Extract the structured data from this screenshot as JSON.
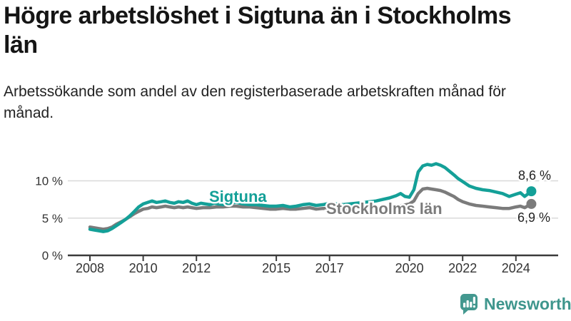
{
  "header": {
    "title": "Högre arbetslöshet i Sigtuna än i Stockholms län",
    "subtitle": "Arbetssökande som andel av den registerbaserade arbetskraften månad för månad."
  },
  "chart_data": {
    "type": "line",
    "title": "Högre arbetslöshet i Sigtuna än i Stockholms län",
    "subtitle": "Arbetssökande som andel av den registerbaserade arbetskraften månad för månad.",
    "unit": "%",
    "x_axis": {
      "ticks": [
        2008,
        2010,
        2012,
        2015,
        2017,
        2020,
        2022,
        2024
      ],
      "range": [
        2008,
        2024.6
      ],
      "grid": false
    },
    "y_axis": {
      "tick_values": [
        0,
        5,
        10
      ],
      "tick_labels": [
        "0 %",
        "5 %",
        "10 %"
      ],
      "range": [
        0,
        13
      ],
      "grid": true
    },
    "grid_color": "#d9d9d9",
    "legend_position": "inline-labels",
    "series": [
      {
        "name": "Sigtuna",
        "color": "#14a098",
        "end_label": "8,6 %",
        "end_value": 8.6,
        "points": [
          [
            2008.0,
            3.5
          ],
          [
            2008.17,
            3.4
          ],
          [
            2008.33,
            3.3
          ],
          [
            2008.5,
            3.2
          ],
          [
            2008.67,
            3.3
          ],
          [
            2008.83,
            3.6
          ],
          [
            2009.0,
            4.0
          ],
          [
            2009.17,
            4.4
          ],
          [
            2009.33,
            4.8
          ],
          [
            2009.5,
            5.3
          ],
          [
            2009.67,
            5.9
          ],
          [
            2009.83,
            6.5
          ],
          [
            2010.0,
            6.9
          ],
          [
            2010.17,
            7.1
          ],
          [
            2010.33,
            7.3
          ],
          [
            2010.5,
            7.1
          ],
          [
            2010.67,
            7.2
          ],
          [
            2010.83,
            7.3
          ],
          [
            2011.0,
            7.1
          ],
          [
            2011.17,
            7.0
          ],
          [
            2011.33,
            7.2
          ],
          [
            2011.5,
            7.1
          ],
          [
            2011.67,
            7.3
          ],
          [
            2011.83,
            7.0
          ],
          [
            2012.0,
            6.8
          ],
          [
            2012.17,
            7.0
          ],
          [
            2012.33,
            6.9
          ],
          [
            2012.5,
            6.8
          ],
          [
            2012.67,
            7.0
          ],
          [
            2012.83,
            6.9
          ],
          [
            2013.0,
            6.8
          ],
          [
            2013.25,
            7.0
          ],
          [
            2013.5,
            7.1
          ],
          [
            2013.75,
            6.9
          ],
          [
            2014.0,
            6.8
          ],
          [
            2014.25,
            6.8
          ],
          [
            2014.5,
            6.7
          ],
          [
            2014.75,
            6.6
          ],
          [
            2015.0,
            6.6
          ],
          [
            2015.25,
            6.7
          ],
          [
            2015.5,
            6.5
          ],
          [
            2015.75,
            6.6
          ],
          [
            2016.0,
            6.8
          ],
          [
            2016.25,
            6.9
          ],
          [
            2016.5,
            6.7
          ],
          [
            2016.75,
            6.8
          ],
          [
            2017.0,
            7.0
          ],
          [
            2017.25,
            6.9
          ],
          [
            2017.5,
            6.8
          ],
          [
            2017.75,
            6.9
          ],
          [
            2018.0,
            7.0
          ],
          [
            2018.25,
            7.1
          ],
          [
            2018.5,
            7.2
          ],
          [
            2018.75,
            7.3
          ],
          [
            2019.0,
            7.5
          ],
          [
            2019.25,
            7.7
          ],
          [
            2019.5,
            8.0
          ],
          [
            2019.67,
            8.3
          ],
          [
            2019.83,
            7.9
          ],
          [
            2020.0,
            7.8
          ],
          [
            2020.17,
            8.8
          ],
          [
            2020.33,
            11.2
          ],
          [
            2020.5,
            12.0
          ],
          [
            2020.67,
            12.2
          ],
          [
            2020.83,
            12.1
          ],
          [
            2021.0,
            12.3
          ],
          [
            2021.17,
            12.1
          ],
          [
            2021.33,
            11.8
          ],
          [
            2021.5,
            11.3
          ],
          [
            2021.67,
            10.8
          ],
          [
            2021.83,
            10.3
          ],
          [
            2022.0,
            9.9
          ],
          [
            2022.25,
            9.3
          ],
          [
            2022.5,
            9.0
          ],
          [
            2022.75,
            8.8
          ],
          [
            2023.0,
            8.7
          ],
          [
            2023.25,
            8.5
          ],
          [
            2023.5,
            8.3
          ],
          [
            2023.75,
            7.9
          ],
          [
            2024.0,
            8.2
          ],
          [
            2024.17,
            8.4
          ],
          [
            2024.33,
            7.9
          ],
          [
            2024.58,
            8.6
          ]
        ]
      },
      {
        "name": "Stockholms län",
        "color": "#7b7b7b",
        "end_label": "6,9 %",
        "end_value": 6.9,
        "points": [
          [
            2008.0,
            3.8
          ],
          [
            2008.17,
            3.7
          ],
          [
            2008.33,
            3.6
          ],
          [
            2008.5,
            3.5
          ],
          [
            2008.67,
            3.6
          ],
          [
            2008.83,
            3.8
          ],
          [
            2009.0,
            4.2
          ],
          [
            2009.17,
            4.5
          ],
          [
            2009.33,
            4.8
          ],
          [
            2009.5,
            5.2
          ],
          [
            2009.67,
            5.6
          ],
          [
            2009.83,
            5.9
          ],
          [
            2010.0,
            6.2
          ],
          [
            2010.17,
            6.3
          ],
          [
            2010.33,
            6.5
          ],
          [
            2010.5,
            6.4
          ],
          [
            2010.67,
            6.5
          ],
          [
            2010.83,
            6.6
          ],
          [
            2011.0,
            6.5
          ],
          [
            2011.17,
            6.4
          ],
          [
            2011.33,
            6.5
          ],
          [
            2011.5,
            6.4
          ],
          [
            2011.67,
            6.5
          ],
          [
            2011.83,
            6.4
          ],
          [
            2012.0,
            6.3
          ],
          [
            2012.25,
            6.4
          ],
          [
            2012.5,
            6.4
          ],
          [
            2012.75,
            6.5
          ],
          [
            2013.0,
            6.5
          ],
          [
            2013.25,
            6.6
          ],
          [
            2013.5,
            6.6
          ],
          [
            2013.75,
            6.5
          ],
          [
            2014.0,
            6.5
          ],
          [
            2014.25,
            6.4
          ],
          [
            2014.5,
            6.3
          ],
          [
            2014.75,
            6.2
          ],
          [
            2015.0,
            6.2
          ],
          [
            2015.25,
            6.3
          ],
          [
            2015.5,
            6.2
          ],
          [
            2015.75,
            6.2
          ],
          [
            2016.0,
            6.3
          ],
          [
            2016.25,
            6.4
          ],
          [
            2016.5,
            6.2
          ],
          [
            2016.75,
            6.3
          ],
          [
            2017.0,
            6.3
          ],
          [
            2017.25,
            6.2
          ],
          [
            2017.5,
            6.2
          ],
          [
            2017.75,
            6.1
          ],
          [
            2018.0,
            6.2
          ],
          [
            2018.25,
            6.1
          ],
          [
            2018.5,
            6.2
          ],
          [
            2018.75,
            6.3
          ],
          [
            2019.0,
            6.4
          ],
          [
            2019.25,
            6.5
          ],
          [
            2019.5,
            6.6
          ],
          [
            2019.75,
            6.7
          ],
          [
            2020.0,
            6.9
          ],
          [
            2020.17,
            7.3
          ],
          [
            2020.33,
            8.3
          ],
          [
            2020.5,
            8.9
          ],
          [
            2020.67,
            9.0
          ],
          [
            2020.83,
            8.9
          ],
          [
            2021.0,
            8.8
          ],
          [
            2021.17,
            8.7
          ],
          [
            2021.33,
            8.5
          ],
          [
            2021.5,
            8.2
          ],
          [
            2021.67,
            7.9
          ],
          [
            2021.83,
            7.5
          ],
          [
            2022.0,
            7.2
          ],
          [
            2022.25,
            6.9
          ],
          [
            2022.5,
            6.7
          ],
          [
            2022.75,
            6.6
          ],
          [
            2023.0,
            6.5
          ],
          [
            2023.25,
            6.4
          ],
          [
            2023.5,
            6.3
          ],
          [
            2023.75,
            6.3
          ],
          [
            2024.0,
            6.5
          ],
          [
            2024.17,
            6.6
          ],
          [
            2024.33,
            6.4
          ],
          [
            2024.58,
            6.9
          ]
        ]
      }
    ]
  },
  "footer": {
    "brand": "Newsworthy",
    "brand_color": "#3f968d"
  }
}
